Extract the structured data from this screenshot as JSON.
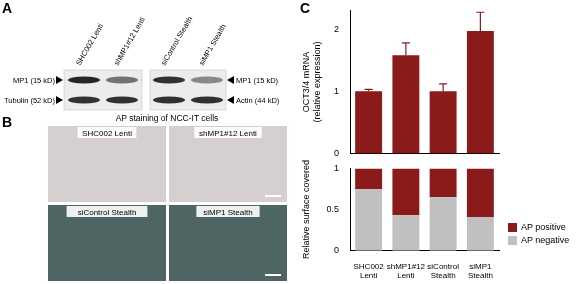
{
  "panels": {
    "A": {
      "label": "A",
      "lanes": [
        "SHC002 Lenti",
        "shMP1#12 Lenti",
        "siControl Stealth",
        "siMP1 Stealth"
      ],
      "left_labels": [
        "MP1 (15 kD)",
        "Tubulin (52 kD)"
      ],
      "right_labels": [
        "MP1 (15 kD)",
        "Actin (44 kD)"
      ]
    },
    "B": {
      "label": "B",
      "title": "AP staining of NCC-IT cells",
      "images": [
        "SHC002 Lenti",
        "shMP1#12 Lenti",
        "siControl Stealth",
        "siMP1 Stealth"
      ]
    },
    "C": {
      "label": "C"
    }
  },
  "chart_data": [
    {
      "type": "bar",
      "categories": [
        "SHC002 Lenti",
        "shMP1#12 Lenti",
        "siControl Stealth",
        "siMP1 Stealth"
      ],
      "values": [
        1.0,
        1.58,
        1.0,
        1.97
      ],
      "errors": [
        0.03,
        0.2,
        0.12,
        0.3
      ],
      "color": "#8b1a1a",
      "ylabel": "OCT3/4 mRNA (relative expression)",
      "ylim": [
        0,
        2.3
      ],
      "yticks": [
        0,
        1,
        2
      ],
      "grid": false,
      "tick_labels": "y"
    },
    {
      "type": "bar",
      "stacked": true,
      "categories": [
        "SHC002 Lenti",
        "shMP1#12 Lenti",
        "siControl Stealth",
        "siMP1 Stealth"
      ],
      "ylabel": "Relative surface covered",
      "series": [
        {
          "name": "AP negative",
          "color": "#c0c0c0",
          "values": [
            0.75,
            0.43,
            0.65,
            0.41
          ]
        },
        {
          "name": "AP positive",
          "color": "#8b1a1a",
          "values": [
            0.25,
            0.57,
            0.35,
            0.59
          ]
        }
      ],
      "ylim": [
        0,
        1
      ],
      "yticks": [
        0,
        0.5,
        1
      ],
      "grid": false,
      "legend": "lower right"
    }
  ]
}
